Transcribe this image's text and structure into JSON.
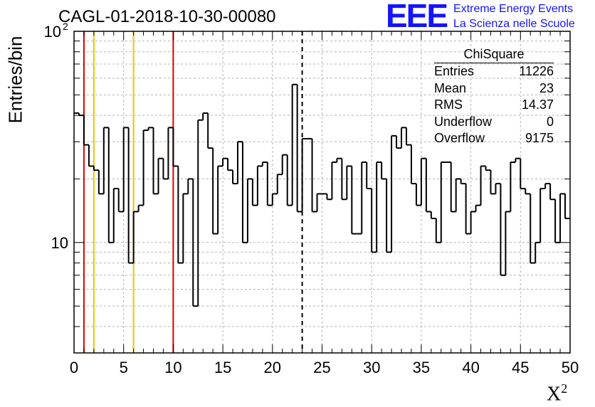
{
  "run_title": "CAGL-01-2018-10-30-00080",
  "logo": {
    "mark": "EEE",
    "line1": "Extreme Energy Events",
    "line2": "La Scienza nelle Scuole",
    "color": "#1414ff"
  },
  "stats_box": {
    "name": "ChiSquare",
    "rows": [
      {
        "label": "Entries",
        "value": "11226"
      },
      {
        "label": "Mean",
        "value": "23"
      },
      {
        "label": "RMS",
        "value": "14.37"
      },
      {
        "label": "Underflow",
        "value": "0"
      },
      {
        "label": "Overflow",
        "value": "9175"
      }
    ]
  },
  "chart_data": {
    "type": "histogram",
    "ylabel": "Entries/bin",
    "xlabel_base": "X",
    "xlabel_sup": "2",
    "xlim": [
      0,
      50
    ],
    "ylim": [
      3,
      100
    ],
    "yscale": "log",
    "grid": true,
    "bin_width": 0.5,
    "x_ticks": [
      0,
      5,
      10,
      15,
      20,
      25,
      30,
      35,
      40,
      45,
      50
    ],
    "x_tick_labels": [
      "0",
      "5",
      "10",
      "15",
      "20",
      "25",
      "30",
      "35",
      "40",
      "45",
      "50"
    ],
    "y_tick_labels": [
      {
        "value": 10,
        "base": "10",
        "sup": ""
      },
      {
        "value": 100,
        "base": "10",
        "sup": "2"
      }
    ],
    "values": [
      41,
      40,
      29,
      23,
      22,
      17,
      35,
      10,
      18,
      14,
      35,
      8,
      14,
      15,
      34,
      35,
      17,
      25,
      20,
      35,
      23,
      8,
      17,
      20,
      5,
      38,
      41,
      28,
      11,
      23,
      25,
      22,
      19,
      30,
      10,
      20,
      15,
      23,
      24,
      15,
      17,
      21,
      26,
      15,
      56,
      14,
      31,
      31,
      14,
      17,
      17,
      16,
      24,
      25,
      16,
      23,
      11,
      11,
      24,
      18,
      9,
      24,
      20,
      9,
      32,
      28,
      35,
      29,
      19,
      15,
      25,
      14,
      13,
      10,
      24,
      24,
      14,
      20,
      19,
      11,
      14,
      15,
      23,
      22,
      17,
      19,
      7,
      14,
      24,
      25,
      18,
      17,
      8,
      10,
      18,
      19,
      16,
      10,
      17,
      13
    ],
    "vlines": [
      {
        "x": 1,
        "color": "#dd0000",
        "style": "solid"
      },
      {
        "x": 2,
        "color": "#f2c200",
        "style": "solid"
      },
      {
        "x": 6,
        "color": "#f2c200",
        "style": "solid"
      },
      {
        "x": 10,
        "color": "#dd0000",
        "style": "solid"
      },
      {
        "x": 23,
        "color": "#000000",
        "style": "dashed"
      }
    ]
  }
}
